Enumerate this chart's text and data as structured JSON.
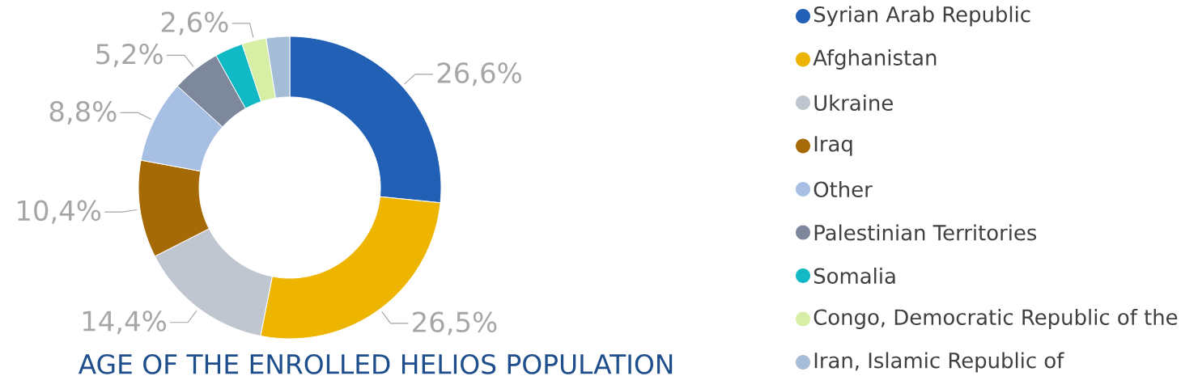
{
  "chart_data": {
    "type": "donut",
    "title": "AGE OF THE ENROLLED HELIOS POPULATION",
    "categories": [
      "Syrian Arab Republic",
      "Afghanistan",
      "Ukraine",
      "Iraq",
      "Other",
      "Palestinian Territories",
      "Somalia",
      "Congo, Democratic Republic of the",
      "Iran, Islamic Republic of"
    ],
    "values": [
      26.6,
      26.5,
      14.4,
      10.4,
      8.8,
      5.2,
      3.0,
      2.6,
      2.5
    ],
    "value_labels": [
      "26,6%",
      "26,5%",
      "14,4%",
      "10,4%",
      "8,8%",
      "5,2%",
      null,
      "2,6%",
      null
    ],
    "colors": [
      "#2160b5",
      "#eeb500",
      "#c0c6d0",
      "#a56a05",
      "#a7bfe3",
      "#7d889c",
      "#10b9c4",
      "#d6efa5",
      "#a4bcd6"
    ],
    "legend": "right"
  }
}
